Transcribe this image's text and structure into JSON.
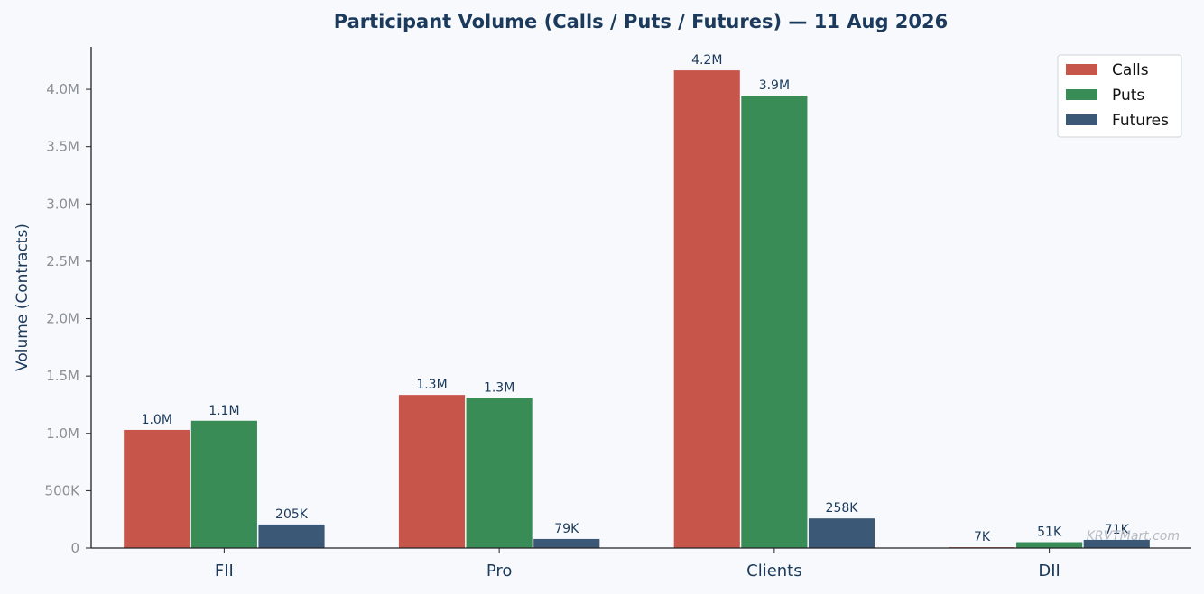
{
  "chart_data": {
    "type": "bar",
    "title": "Participant Volume (Calls / Puts / Futures) — 11 Aug 2026",
    "xlabel": "",
    "ylabel": "Volume (Contracts)",
    "categories": [
      "FII",
      "Pro",
      "Clients",
      "DII"
    ],
    "series": [
      {
        "name": "Calls",
        "color": "#c8554a",
        "values": [
          1030000,
          1335000,
          4165000,
          7000
        ],
        "labels": [
          "1.0M",
          "1.3M",
          "4.2M",
          "7K"
        ]
      },
      {
        "name": "Puts",
        "color": "#3a8c57",
        "values": [
          1110000,
          1310000,
          3945000,
          51000
        ],
        "labels": [
          "1.1M",
          "1.3M",
          "3.9M",
          "51K"
        ]
      },
      {
        "name": "Futures",
        "color": "#3c5877",
        "values": [
          205000,
          79000,
          258000,
          71000
        ],
        "labels": [
          "205K",
          "79K",
          "258K",
          "71K"
        ]
      }
    ],
    "ylim": [
      0,
      4370000
    ],
    "yticks": [
      0,
      500000,
      1000000,
      1500000,
      2000000,
      2500000,
      3000000,
      3500000,
      4000000
    ],
    "ytick_labels": [
      "0",
      "500K",
      "1.0M",
      "1.5M",
      "2.0M",
      "2.5M",
      "3.0M",
      "3.5M",
      "4.0M"
    ],
    "legend_position": "top-right",
    "grid": false
  },
  "watermark": "KRVTMart.com"
}
